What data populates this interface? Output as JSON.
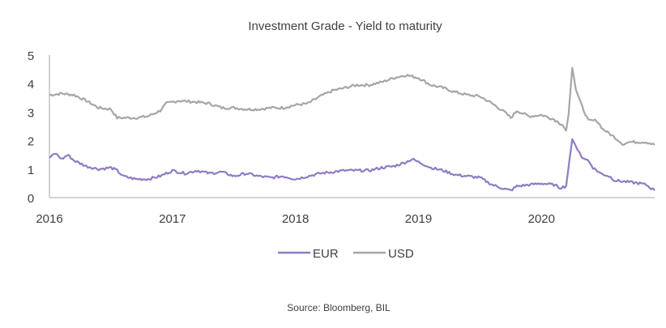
{
  "chart_data": {
    "type": "line",
    "title": "Investment Grade - Yield to maturity",
    "xlabel": "",
    "ylabel": "",
    "xlim": [
      2016.0,
      2020.92
    ],
    "ylim": [
      0,
      5
    ],
    "x_ticks": [
      "2016",
      "2017",
      "2018",
      "2019",
      "2020"
    ],
    "x_tick_values": [
      2016,
      2017,
      2018,
      2019,
      2020
    ],
    "y_ticks": [
      "0",
      "1",
      "2",
      "3",
      "4",
      "5"
    ],
    "y_tick_values": [
      0,
      1,
      2,
      3,
      4,
      5
    ],
    "grid": false,
    "legend_position": "bottom-center",
    "source": "Source: Bloomberg, BIL",
    "series": [
      {
        "name": "EUR",
        "color": "#8e7cc3",
        "x": [
          2016.0,
          2016.05,
          2016.1,
          2016.15,
          2016.2,
          2016.3,
          2016.4,
          2016.5,
          2016.55,
          2016.6,
          2016.7,
          2016.8,
          2016.9,
          2017.0,
          2017.1,
          2017.2,
          2017.3,
          2017.4,
          2017.5,
          2017.6,
          2017.7,
          2017.8,
          2017.9,
          2018.0,
          2018.1,
          2018.2,
          2018.3,
          2018.4,
          2018.5,
          2018.6,
          2018.7,
          2018.8,
          2018.9,
          2018.95,
          2019.0,
          2019.1,
          2019.2,
          2019.3,
          2019.4,
          2019.5,
          2019.6,
          2019.7,
          2019.75,
          2019.8,
          2019.9,
          2020.0,
          2020.1,
          2020.15,
          2020.2,
          2020.23,
          2020.25,
          2020.28,
          2020.32,
          2020.38,
          2020.42,
          2020.48,
          2020.55,
          2020.6,
          2020.7,
          2020.8,
          2020.85,
          2020.92
        ],
        "values": [
          1.4,
          1.55,
          1.35,
          1.5,
          1.3,
          1.1,
          1.0,
          1.05,
          0.95,
          0.75,
          0.65,
          0.65,
          0.75,
          0.95,
          0.85,
          0.95,
          0.85,
          0.9,
          0.75,
          0.85,
          0.75,
          0.7,
          0.75,
          0.65,
          0.75,
          0.85,
          0.9,
          0.95,
          0.95,
          0.95,
          1.05,
          1.1,
          1.25,
          1.35,
          1.25,
          1.05,
          0.95,
          0.8,
          0.75,
          0.7,
          0.45,
          0.3,
          0.25,
          0.4,
          0.45,
          0.5,
          0.45,
          0.35,
          0.4,
          1.4,
          2.05,
          1.8,
          1.45,
          1.3,
          1.05,
          0.85,
          0.75,
          0.6,
          0.55,
          0.5,
          0.45,
          0.25
        ]
      },
      {
        "name": "USD",
        "color": "#a6a6a6",
        "x": [
          2016.0,
          2016.1,
          2016.2,
          2016.3,
          2016.4,
          2016.5,
          2016.55,
          2016.7,
          2016.8,
          2016.85,
          2016.9,
          2016.95,
          2017.05,
          2017.2,
          2017.3,
          2017.4,
          2017.5,
          2017.6,
          2017.7,
          2017.8,
          2017.9,
          2018.0,
          2018.1,
          2018.2,
          2018.3,
          2018.4,
          2018.5,
          2018.6,
          2018.7,
          2018.8,
          2018.9,
          2019.0,
          2019.1,
          2019.2,
          2019.3,
          2019.4,
          2019.5,
          2019.6,
          2019.7,
          2019.75,
          2019.8,
          2019.9,
          2020.0,
          2020.1,
          2020.17,
          2020.2,
          2020.22,
          2020.25,
          2020.28,
          2020.32,
          2020.38,
          2020.45,
          2020.5,
          2020.6,
          2020.67,
          2020.7,
          2020.8,
          2020.85,
          2020.92
        ],
        "values": [
          3.6,
          3.65,
          3.6,
          3.4,
          3.15,
          3.1,
          2.8,
          2.8,
          2.85,
          2.95,
          3.05,
          3.3,
          3.4,
          3.35,
          3.3,
          3.15,
          3.15,
          3.1,
          3.1,
          3.15,
          3.15,
          3.25,
          3.3,
          3.55,
          3.75,
          3.85,
          3.95,
          3.95,
          4.05,
          4.2,
          4.3,
          4.2,
          3.95,
          3.85,
          3.7,
          3.6,
          3.55,
          3.3,
          3.0,
          2.8,
          3.05,
          2.85,
          2.9,
          2.75,
          2.55,
          2.35,
          2.9,
          4.55,
          3.8,
          3.3,
          2.7,
          2.7,
          2.4,
          2.1,
          1.85,
          1.95,
          1.95,
          1.95,
          1.85
        ]
      }
    ]
  }
}
